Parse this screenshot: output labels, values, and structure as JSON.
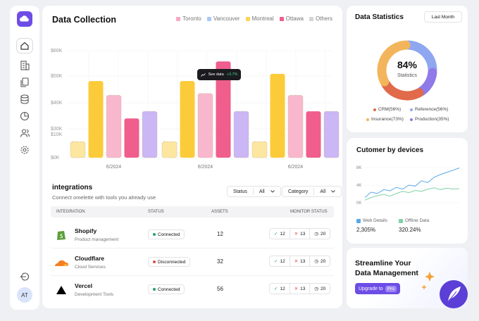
{
  "sidebar": {
    "items": [
      {
        "name": "home"
      },
      {
        "name": "building"
      },
      {
        "name": "files"
      },
      {
        "name": "database"
      },
      {
        "name": "pie"
      },
      {
        "name": "users"
      },
      {
        "name": "settings"
      }
    ],
    "avatar": "AT"
  },
  "data_collection": {
    "title": "Data Collection",
    "legend": [
      {
        "label": "Toronto",
        "color": "#f7a8c4"
      },
      {
        "label": "Vancouver",
        "color": "#a8c8f5"
      },
      {
        "label": "Montreal",
        "color": "#fcd45a"
      },
      {
        "label": "Ottawa",
        "color": "#ef5e8c"
      },
      {
        "label": "Others",
        "color": "#d4d4d8"
      }
    ],
    "tooltip": {
      "label": "See data",
      "delta": "+3.7%"
    }
  },
  "chart_data": [
    {
      "type": "bar",
      "title": "",
      "categories": [
        "6/2024",
        "6/2024",
        "6/2024"
      ],
      "y_ticks": [
        "$0K",
        "$10K",
        "$30K",
        "$40K",
        "$50K",
        "$60K"
      ],
      "ylim": [
        0,
        60
      ],
      "groups": [
        {
          "label": "6/2024",
          "bars": [
            {
              "value": 9,
              "color": "#fde6a0",
              "dashed": true
            },
            {
              "value": 43,
              "color": "#fccb3a",
              "dashed": false
            },
            {
              "value": 35,
              "color": "#f9b7ce",
              "dashed": true
            },
            {
              "value": 22,
              "color": "#ef5e8c",
              "dashed": false
            },
            {
              "value": 26,
              "color": "#cbb6f6",
              "dashed": true
            }
          ]
        },
        {
          "label": "6/2024",
          "bars": [
            {
              "value": 9,
              "color": "#fde6a0",
              "dashed": true
            },
            {
              "value": 43,
              "color": "#fccb3a",
              "dashed": false
            },
            {
              "value": 36,
              "color": "#f9b7ce",
              "dashed": true
            },
            {
              "value": 54,
              "color": "#ef5e8c",
              "dashed": false
            },
            {
              "value": 26,
              "color": "#cbb6f6",
              "dashed": true
            }
          ]
        },
        {
          "label": "6/2024",
          "bars": [
            {
              "value": 9,
              "color": "#fde6a0",
              "dashed": true
            },
            {
              "value": 47,
              "color": "#fccb3a",
              "dashed": false
            },
            {
              "value": 35,
              "color": "#f9b7ce",
              "dashed": true
            },
            {
              "value": 26,
              "color": "#ef5e8c",
              "dashed": false
            },
            {
              "value": 26,
              "color": "#cbb6f6",
              "dashed": true
            }
          ]
        }
      ]
    },
    {
      "type": "pie",
      "center_value": "84%",
      "center_label": "Statistics",
      "slices": [
        {
          "label": "CRM(56%)",
          "value": 56,
          "color": "#e06a4a"
        },
        {
          "label": "Reference(56%)",
          "value": 56,
          "color": "#8fa6f0"
        },
        {
          "label": "Insurance(73%)",
          "value": 73,
          "color": "#f3b55b"
        },
        {
          "label": "Production(35%)",
          "value": 35,
          "color": "#8f7ae8"
        }
      ]
    },
    {
      "type": "line",
      "y_ticks": [
        "0K",
        "4K",
        "8K"
      ],
      "ylim": [
        0,
        8
      ],
      "series": [
        {
          "name": "Web Details",
          "color": "#5aa8e6",
          "values": [
            1.2,
            2.4,
            2.1,
            3.0,
            2.7,
            3.5,
            3.1,
            4.0,
            3.8,
            5.0,
            4.6,
            5.8,
            6.4,
            6.9,
            7.4,
            7.9
          ]
        },
        {
          "name": "Offline Data",
          "color": "#7fd3a6",
          "values": [
            0.6,
            1.2,
            1.6,
            1.9,
            1.5,
            2.1,
            2.6,
            2.3,
            2.8,
            2.6,
            3.1,
            3.4,
            3.0,
            3.3,
            3.1,
            3.2
          ]
        }
      ]
    }
  ],
  "integrations": {
    "title": "integrations",
    "subtitle": "Connect omelette with tools you already use",
    "filters": [
      {
        "label": "Status",
        "value": "All"
      },
      {
        "label": "Category",
        "value": "All"
      }
    ],
    "columns": [
      "INTEGRATION",
      "STATUS",
      "ASSETS",
      "MONITOR STATUS"
    ],
    "rows": [
      {
        "name": "Shopify",
        "category": "Product management",
        "status": "Connected",
        "status_color": "#22a36b",
        "assets": "12",
        "ok": "12",
        "err": "13",
        "time": "20"
      },
      {
        "name": "Cloudflare",
        "category": "Cloud Services",
        "status": "Disconnected",
        "status_color": "#e24c4c",
        "assets": "32",
        "ok": "12",
        "err": "13",
        "time": "20"
      },
      {
        "name": "Vercel",
        "category": "Development Tools",
        "status": "Connected",
        "status_color": "#22a36b",
        "assets": "56",
        "ok": "12",
        "err": "13",
        "time": "20"
      }
    ]
  },
  "statistics": {
    "title": "Data Statistics",
    "button": "Last Month"
  },
  "devices": {
    "title": "Cutomer by devices",
    "legend": [
      {
        "label": "Web Details",
        "value": "2,305%",
        "color": "#5aa8e6"
      },
      {
        "label": "Offline Data",
        "value": "320.24%",
        "color": "#7fd3a6"
      }
    ]
  },
  "promo": {
    "line1": "Streamline Your",
    "line2": "Data Management",
    "button": "Upgrade to",
    "badge": "Pro"
  }
}
